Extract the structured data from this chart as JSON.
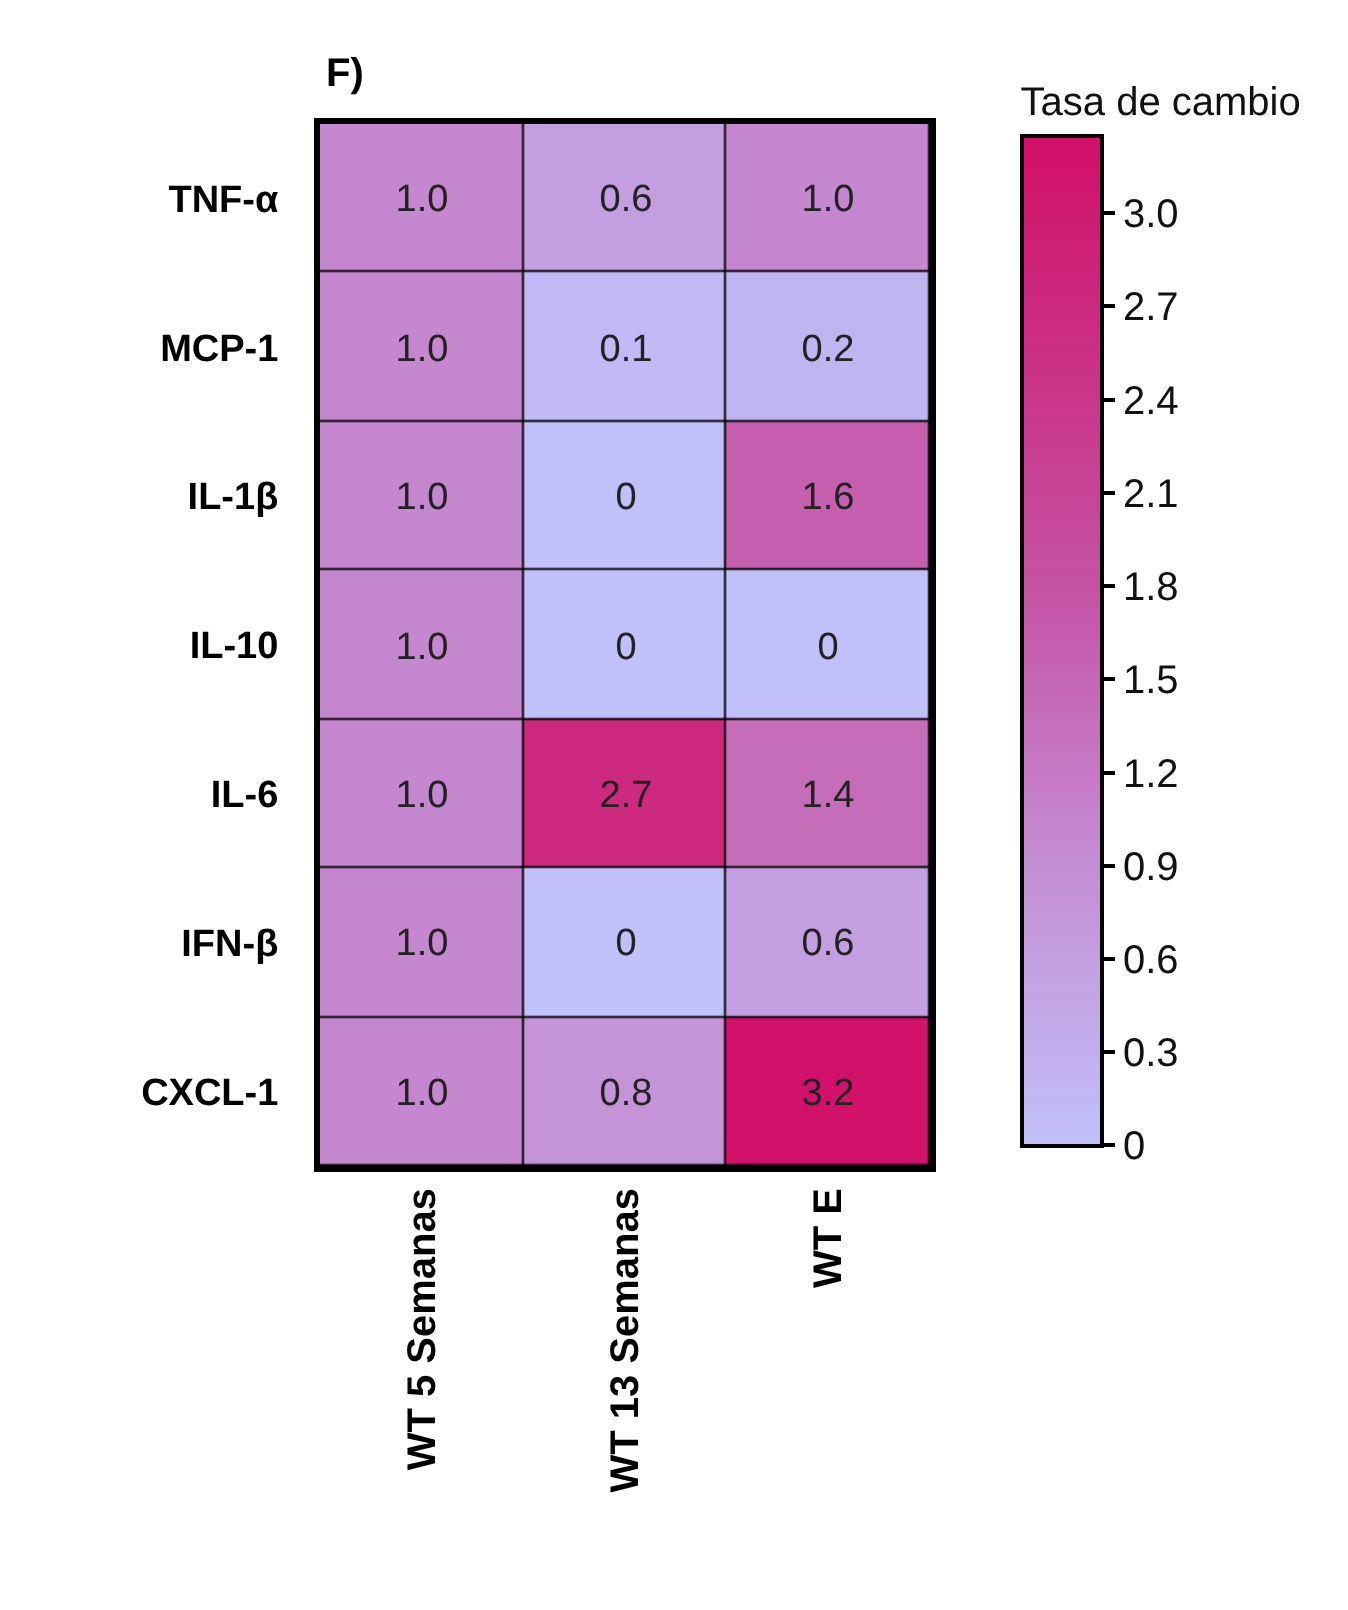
{
  "chart_data": {
    "type": "heatmap",
    "title": "F)",
    "clabel": "Tasa de cambio",
    "categories": [
      "WT 5 Semanas",
      "WT 13 Semanas",
      "WT E"
    ],
    "y_categories": [
      "TNF-α",
      "MCP-1",
      "IL-1β",
      "IL-10",
      "IL-6",
      "IFN-β",
      "CXCL-1"
    ],
    "cells": [
      [
        1.0,
        0.6,
        1.0
      ],
      [
        1.0,
        0.1,
        0.2
      ],
      [
        1.0,
        0,
        1.6
      ],
      [
        1.0,
        0,
        0
      ],
      [
        1.0,
        2.7,
        1.4
      ],
      [
        1.0,
        0,
        0.6
      ],
      [
        1.0,
        0.8,
        3.2
      ]
    ],
    "cell_labels": [
      [
        "1.0",
        "0.6",
        "1.0"
      ],
      [
        "1.0",
        "0.1",
        "0.2"
      ],
      [
        "1.0",
        "0",
        "1.6"
      ],
      [
        "1.0",
        "0",
        "0"
      ],
      [
        "1.0",
        "2.7",
        "1.4"
      ],
      [
        "1.0",
        "0",
        "0.6"
      ],
      [
        "1.0",
        "0.8",
        "3.2"
      ]
    ],
    "clim": [
      0,
      3.25
    ],
    "cticks": [
      0,
      0.3,
      0.6,
      0.9,
      1.2,
      1.5,
      1.8,
      2.1,
      2.4,
      2.7,
      {
        "value": 3,
        "label": "3.0"
      }
    ]
  }
}
